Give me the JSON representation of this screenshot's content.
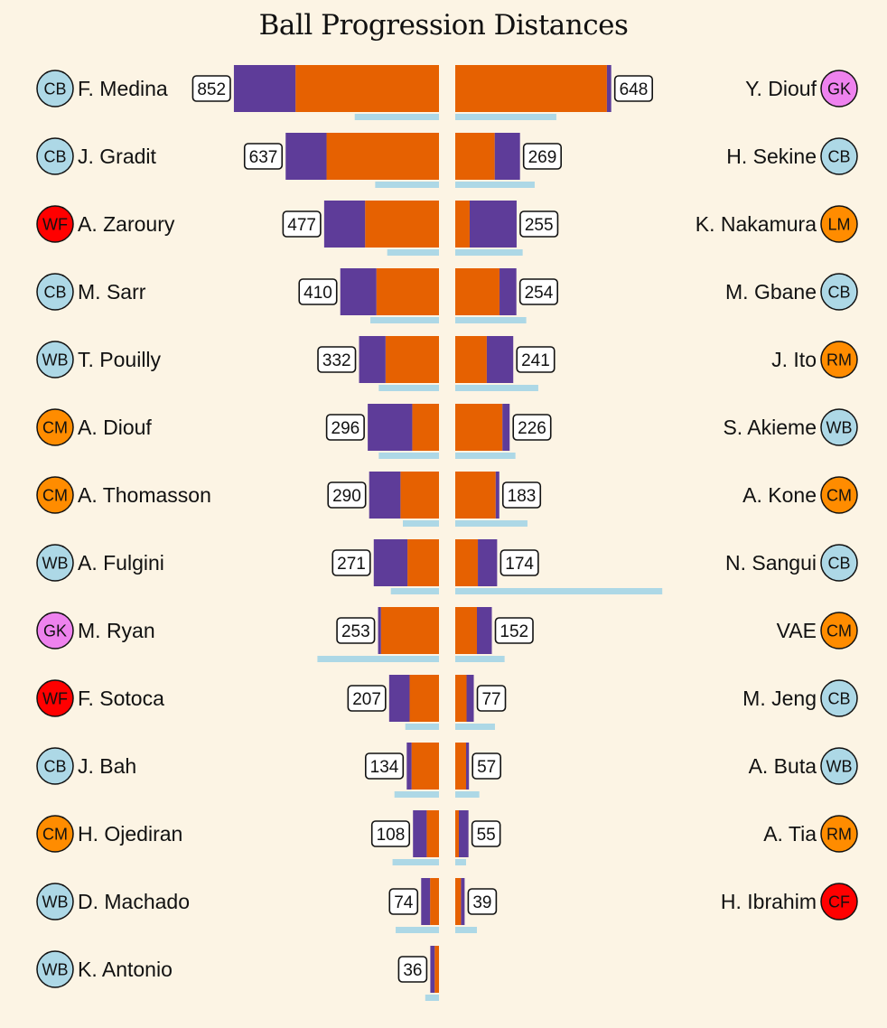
{
  "colors": {
    "background": "#fcf4e4",
    "orange_segment": "#e66101",
    "purple_segment": "#5e3c99",
    "underline_bar": "#add8e6"
  },
  "position_colors": {
    "CB": "#add8e6",
    "WB": "#add8e6",
    "GK": "#ee82ee",
    "WF": "#ff0000",
    "CF": "#ff0000",
    "CM": "#ff8c00",
    "LM": "#ff8c00",
    "RM": "#ff8c00"
  },
  "chart_data": {
    "type": "bar",
    "title": "Ball Progression Distances",
    "legend": "none",
    "grid": false,
    "left_team": [
      {
        "name": "F. Medina",
        "position": "CB",
        "total": 852,
        "purple": 256,
        "orange": 596,
        "underline": 350
      },
      {
        "name": "J. Gradit",
        "position": "CB",
        "total": 637,
        "purple": 170,
        "orange": 467,
        "underline": 265
      },
      {
        "name": "A. Zaroury",
        "position": "WF",
        "total": 477,
        "purple": 170,
        "orange": 307,
        "underline": 215
      },
      {
        "name": "M. Sarr",
        "position": "CB",
        "total": 410,
        "purple": 150,
        "orange": 260,
        "underline": 285
      },
      {
        "name": "T. Pouilly",
        "position": "WB",
        "total": 332,
        "purple": 110,
        "orange": 222,
        "underline": 250
      },
      {
        "name": "A. Diouf",
        "position": "CM",
        "total": 296,
        "purple": 185,
        "orange": 111,
        "underline": 250
      },
      {
        "name": "A. Thomasson",
        "position": "CM",
        "total": 290,
        "purple": 130,
        "orange": 160,
        "underline": 150
      },
      {
        "name": "A. Fulgini",
        "position": "WB",
        "total": 271,
        "purple": 140,
        "orange": 131,
        "underline": 200
      },
      {
        "name": "M. Ryan",
        "position": "GK",
        "total": 253,
        "purple": 12,
        "orange": 241,
        "underline": 505
      },
      {
        "name": "F. Sotoca",
        "position": "WF",
        "total": 207,
        "purple": 85,
        "orange": 122,
        "underline": 140
      },
      {
        "name": "J. Bah",
        "position": "CB",
        "total": 134,
        "purple": 20,
        "orange": 114,
        "underline": 185
      },
      {
        "name": "H. Ojediran",
        "position": "CM",
        "total": 108,
        "purple": 57,
        "orange": 51,
        "underline": 193
      },
      {
        "name": "D. Machado",
        "position": "WB",
        "total": 74,
        "purple": 37,
        "orange": 37,
        "underline": 180
      },
      {
        "name": "K. Antonio",
        "position": "WB",
        "total": 36,
        "purple": 18,
        "orange": 18,
        "underline": 57
      }
    ],
    "right_team": [
      {
        "name": "Y. Diouf",
        "position": "GK",
        "total": 648,
        "purple": 18,
        "orange": 630,
        "underline": 420
      },
      {
        "name": "H. Sekine",
        "position": "CB",
        "total": 269,
        "purple": 105,
        "orange": 164,
        "underline": 330
      },
      {
        "name": "K. Nakamura",
        "position": "LM",
        "total": 255,
        "purple": 195,
        "orange": 60,
        "underline": 280
      },
      {
        "name": "M. Gbane",
        "position": "CB",
        "total": 254,
        "purple": 70,
        "orange": 184,
        "underline": 295
      },
      {
        "name": "J. Ito",
        "position": "RM",
        "total": 241,
        "purple": 110,
        "orange": 131,
        "underline": 345
      },
      {
        "name": "S. Akieme",
        "position": "WB",
        "total": 226,
        "purple": 30,
        "orange": 196,
        "underline": 250
      },
      {
        "name": "A. Kone",
        "position": "CM",
        "total": 183,
        "purple": 15,
        "orange": 168,
        "underline": 300
      },
      {
        "name": "N. Sangui",
        "position": "CB",
        "total": 174,
        "purple": 80,
        "orange": 94,
        "underline": 860
      },
      {
        "name": "VAE",
        "position": "CM",
        "total": 152,
        "purple": 62,
        "orange": 90,
        "underline": 205
      },
      {
        "name": "M. Jeng",
        "position": "CB",
        "total": 77,
        "purple": 30,
        "orange": 47,
        "underline": 165
      },
      {
        "name": "A. Buta",
        "position": "WB",
        "total": 57,
        "purple": 12,
        "orange": 45,
        "underline": 100
      },
      {
        "name": "A. Tia",
        "position": "RM",
        "total": 55,
        "purple": 40,
        "orange": 15,
        "underline": 45
      },
      {
        "name": "H. Ibrahim",
        "position": "CF",
        "total": 39,
        "purple": 15,
        "orange": 24,
        "underline": 90
      }
    ]
  }
}
